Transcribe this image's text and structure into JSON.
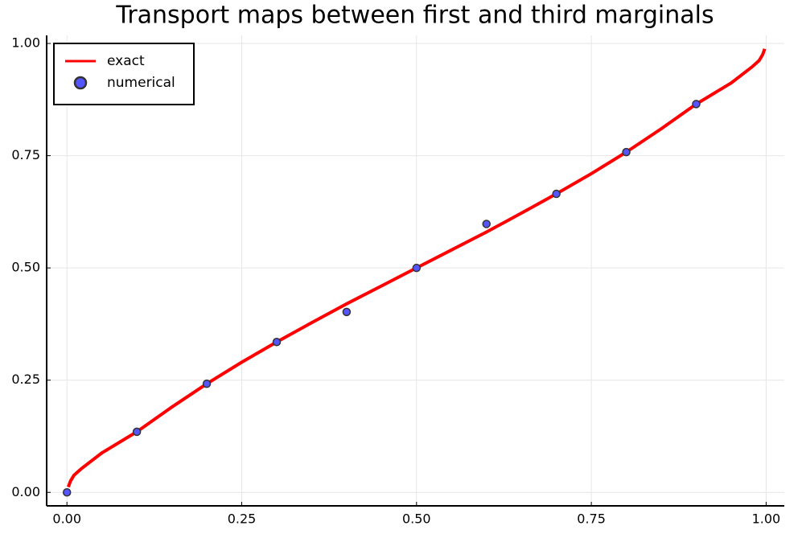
{
  "chart_data": {
    "type": "line",
    "title": "Transport maps between first and third marginals",
    "xlim": [
      -0.029,
      1.026
    ],
    "ylim": [
      -0.03,
      1.018
    ],
    "xticks": [
      {
        "value": 0,
        "label": "0.00"
      },
      {
        "value": 0.25,
        "label": "0.25"
      },
      {
        "value": 0.5,
        "label": "0.50"
      },
      {
        "value": 0.75,
        "label": "0.75"
      },
      {
        "value": 1,
        "label": "1.00"
      }
    ],
    "yticks": [
      {
        "value": 0,
        "label": "0.00"
      },
      {
        "value": 0.25,
        "label": "0.25"
      },
      {
        "value": 0.5,
        "label": "0.50"
      },
      {
        "value": 0.75,
        "label": "0.75"
      },
      {
        "value": 1,
        "label": "1.00"
      }
    ],
    "grid": true,
    "legend": "top-left",
    "series": [
      {
        "name": "exact",
        "kind": "line",
        "color": "#ff0000",
        "x": [
          0.002,
          0.005,
          0.01,
          0.02,
          0.05,
          0.1,
          0.15,
          0.2,
          0.25,
          0.3,
          0.35,
          0.4,
          0.45,
          0.5,
          0.55,
          0.6,
          0.65,
          0.7,
          0.75,
          0.8,
          0.85,
          0.9,
          0.95,
          0.98,
          0.99,
          0.995,
          0.998
        ],
        "values": [
          0.012,
          0.025,
          0.038,
          0.052,
          0.088,
          0.135,
          0.19,
          0.242,
          0.29,
          0.335,
          0.378,
          0.42,
          0.46,
          0.5,
          0.54,
          0.58,
          0.622,
          0.665,
          0.71,
          0.758,
          0.81,
          0.865,
          0.912,
          0.948,
          0.962,
          0.975,
          0.988
        ]
      },
      {
        "name": "numerical",
        "kind": "scatter",
        "color": "#5555ff",
        "x": [
          0,
          0.1,
          0.2,
          0.3,
          0.4,
          0.5,
          0.6,
          0.7,
          0.8,
          0.9
        ],
        "values": [
          0,
          0.135,
          0.242,
          0.335,
          0.402,
          0.5,
          0.598,
          0.665,
          0.758,
          0.865
        ]
      }
    ]
  }
}
